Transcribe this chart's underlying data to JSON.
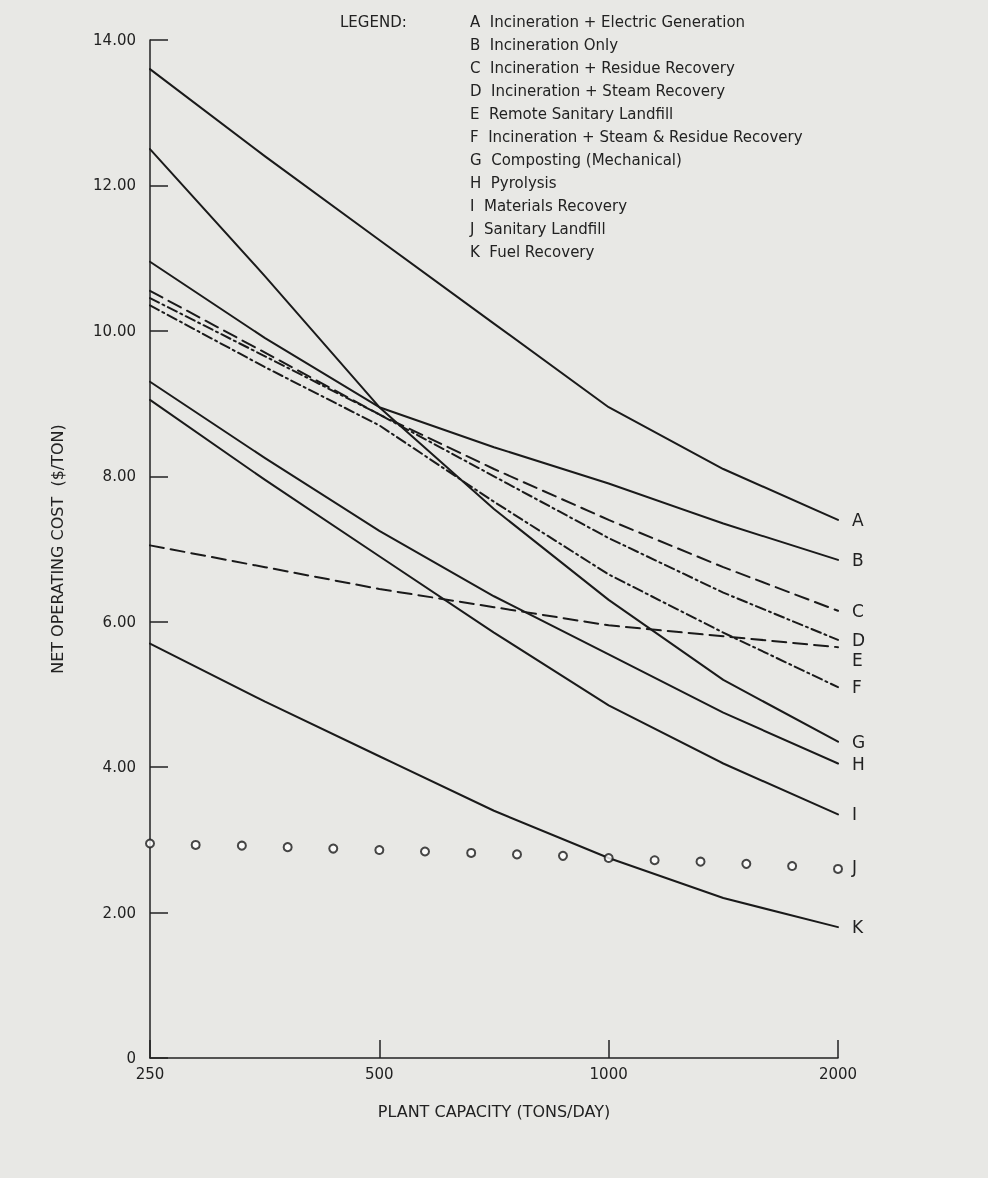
{
  "chart_data": {
    "type": "line",
    "xlabel": "PLANT CAPACITY (TONS/DAY)",
    "ylabel": "NET OPERATING COST  ($/TON)",
    "legend_title": "LEGEND:",
    "annotations": [
      "A  Incineration + Electric Generation",
      "B  Incineration Only",
      "C  Incineration + Residue Recovery",
      "D  Incineration + Steam Recovery",
      "E  Remote Sanitary Landfill",
      "F  Incineration + Steam & Residue Recovery",
      "G  Composting (Mechanical)",
      "H  Pyrolysis",
      "I  Materials Recovery",
      "J  Sanitary Landfill",
      "K  Fuel Recovery"
    ],
    "log": "x",
    "grid": false,
    "legend": false,
    "marker": "none",
    "line_style": "solid",
    "x": [
      250,
      354,
      500,
      707,
      1000,
      1414,
      2000
    ],
    "xlim": [
      250,
      2000
    ],
    "xticks": [
      250,
      500,
      1000,
      2000
    ],
    "ylim": [
      0,
      14
    ],
    "yticks": [
      0,
      {
        "value": 2,
        "label": "2.00"
      },
      {
        "value": 4,
        "label": "4.00"
      },
      {
        "value": 6,
        "label": "6.00"
      },
      {
        "value": 8,
        "label": "8.00"
      },
      {
        "value": 10,
        "label": "10.00"
      },
      {
        "value": 12,
        "label": "12.00"
      },
      {
        "value": 14,
        "label": "14.00"
      }
    ],
    "series": [
      {
        "name": "A",
        "color": "#1a1a1a",
        "values": [
          13.6,
          12.4,
          11.25,
          10.1,
          8.95,
          8.1,
          7.4
        ]
      },
      {
        "name": "B",
        "color": "#1a1a1a",
        "values": [
          10.95,
          9.9,
          8.95,
          8.4,
          7.9,
          7.35,
          6.85
        ]
      },
      {
        "name": "C",
        "color": "#1a1a1a",
        "line_style": "dashed",
        "values": [
          10.55,
          9.7,
          8.85,
          8.1,
          7.4,
          6.75,
          6.15
        ]
      },
      {
        "name": "D",
        "color": "#1a1a1a",
        "line_style": "dotted",
        "values": [
          10.45,
          9.65,
          8.85,
          8.0,
          7.15,
          6.4,
          5.75
        ]
      },
      {
        "name": "E",
        "color": "#1a1a1a",
        "line_style": "dashed",
        "values": [
          7.05,
          6.75,
          6.45,
          6.2,
          5.95,
          5.8,
          5.65
        ]
      },
      {
        "name": "F",
        "color": "#1a1a1a",
        "line_style": "dotted",
        "values": [
          10.35,
          9.5,
          8.7,
          7.65,
          6.65,
          5.85,
          5.1
        ]
      },
      {
        "name": "G",
        "color": "#1a1a1a",
        "values": [
          12.5,
          10.75,
          8.95,
          7.55,
          6.3,
          5.2,
          4.35
        ]
      },
      {
        "name": "H",
        "color": "#1a1a1a",
        "values": [
          9.3,
          8.25,
          7.25,
          6.35,
          5.55,
          4.75,
          4.05
        ]
      },
      {
        "name": "I",
        "color": "#1a1a1a",
        "values": [
          9.05,
          7.95,
          6.9,
          5.85,
          4.85,
          4.05,
          3.35
        ]
      },
      {
        "name": "J",
        "color": "#1a1a1a",
        "type": "scatter",
        "marker": "circle",
        "x": [
          250,
          287,
          330,
          379,
          435,
          500,
          574,
          660,
          758,
          871,
          1000,
          1149,
          1320,
          1516,
          1741,
          2000
        ],
        "values": [
          2.95,
          2.93,
          2.92,
          2.9,
          2.88,
          2.86,
          2.84,
          2.82,
          2.8,
          2.78,
          2.75,
          2.72,
          2.7,
          2.67,
          2.64,
          2.6
        ]
      },
      {
        "name": "K",
        "color": "#1a1a1a",
        "values": [
          5.7,
          4.9,
          4.15,
          3.4,
          2.75,
          2.2,
          1.8
        ]
      }
    ]
  }
}
